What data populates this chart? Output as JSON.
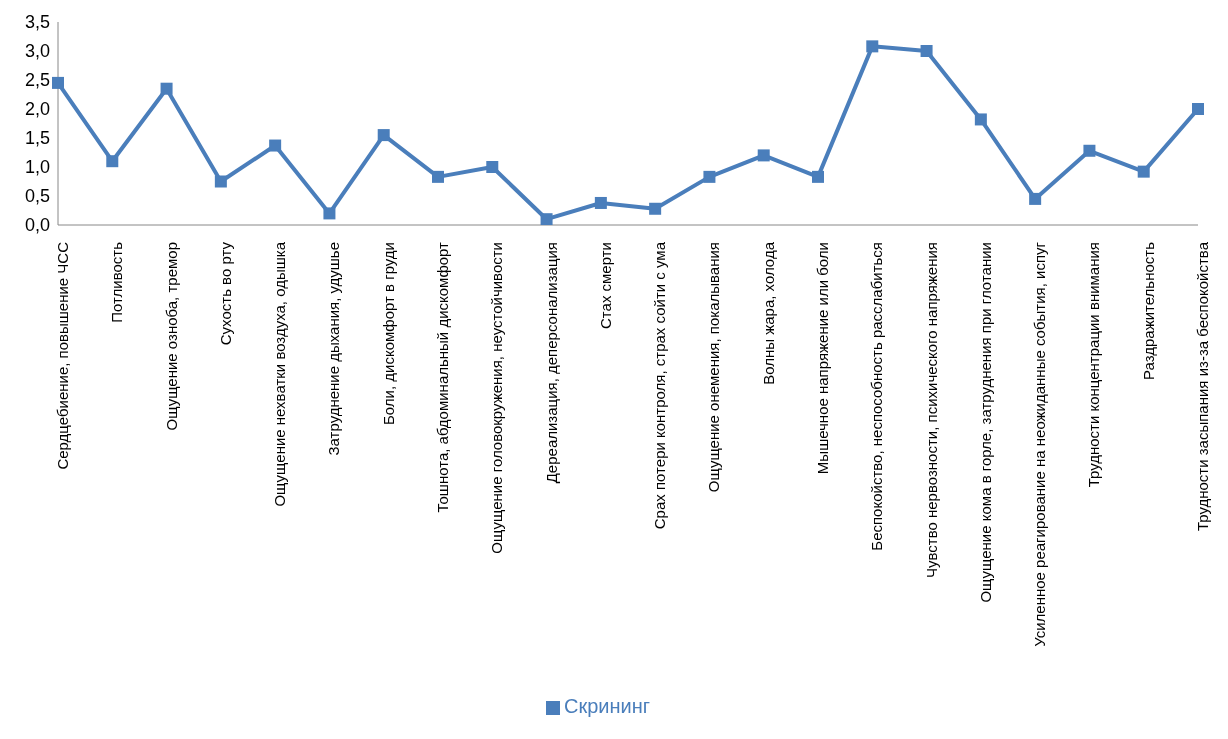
{
  "chart_data": {
    "type": "line",
    "categories": [
      "Сердцебиение, повышение ЧСС",
      "Потливость",
      "Ощущение озноба, тремор",
      "Сухость во рту",
      "Ощущение нехватки воздуха, одышка",
      "Затруднение дыхания, удушье",
      "Боли, дискомфорт в груди",
      "Тошнота, абдоминальный дискомфорт",
      "Ощущение головокружения, неустойчивости",
      "Дереализация, деперсонализация",
      "Стах смерти",
      "Срах потери контроля, страх сойти с ума",
      "Ощущение онемения, покалывания",
      "Волны жара, холода",
      "Мышечное напряжение или боли",
      "Беспокойство, неспособность расслабиться",
      "Чувство нервозности, психического напряжения",
      "Ощущение кома в горле, затруднения при глотании",
      "Усиленное реагирование на неожиданные события, испуг",
      "Трудности концентрации внимания",
      "Раздражительность",
      "Трудности засыпания из-за беспокойства"
    ],
    "series": [
      {
        "name": "Скрининг",
        "color": "#4a7ebb",
        "values": [
          2.45,
          1.1,
          2.35,
          0.75,
          1.37,
          0.2,
          1.55,
          0.83,
          1.0,
          0.1,
          0.38,
          0.28,
          0.83,
          1.2,
          0.83,
          3.08,
          3.0,
          1.82,
          0.45,
          1.28,
          0.92,
          2.0
        ]
      }
    ],
    "ylim": [
      0,
      3.5
    ],
    "yticks": [
      {
        "value": 0,
        "label": "0,0"
      },
      {
        "value": 0.5,
        "label": "0,5"
      },
      {
        "value": 1,
        "label": "1,0"
      },
      {
        "value": 1.5,
        "label": "1,5"
      },
      {
        "value": 2,
        "label": "2,0"
      },
      {
        "value": 2.5,
        "label": "2,5"
      },
      {
        "value": 3,
        "label": "3,0"
      },
      {
        "value": 3.5,
        "label": "3,5"
      }
    ],
    "grid": false,
    "legend": "bottom",
    "marker": "square",
    "line_style": "solid"
  }
}
